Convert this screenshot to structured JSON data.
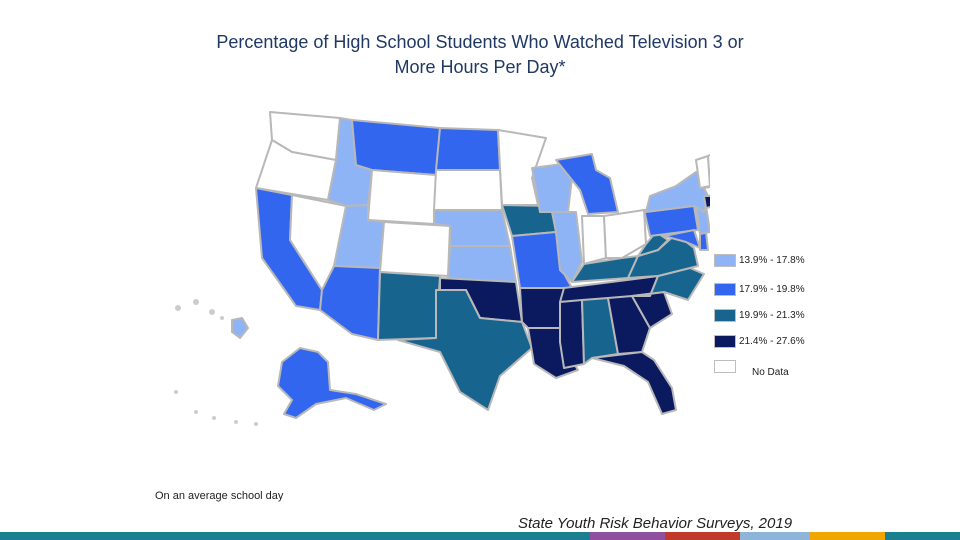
{
  "title_line1": "Percentage of High School Students Who Watched Television 3 or",
  "title_line2": "More Hours Per Day*",
  "footnote": "On an average school day",
  "source": "State Youth Risk Behavior Surveys, 2019",
  "legend": [
    {
      "label": "13.9% - 17.8%",
      "color": "#8fb4f5"
    },
    {
      "label": "17.9% - 19.8%",
      "color": "#3366ee"
    },
    {
      "label": "19.9% - 21.3%",
      "color": "#17648f"
    },
    {
      "label": "21.4% - 27.6%",
      "color": "#0b1a5e"
    },
    {
      "label": "No Data",
      "color": "#ffffff"
    }
  ],
  "state_colors": {
    "WA": "#ffffff",
    "OR": "#ffffff",
    "CA": "#3366ee",
    "NV": "#ffffff",
    "ID": "#8fb4f5",
    "MT": "#3366ee",
    "WY": "#ffffff",
    "UT": "#8fb4f5",
    "AZ": "#3366ee",
    "CO": "#ffffff",
    "NM": "#17648f",
    "ND": "#3366ee",
    "SD": "#ffffff",
    "NE": "#8fb4f5",
    "KS": "#8fb4f5",
    "OK": "#0b1a5e",
    "TX": "#17648f",
    "MN": "#ffffff",
    "IA": "#17648f",
    "MO": "#3366ee",
    "AR": "#0b1a5e",
    "LA": "#0b1a5e",
    "WI": "#8fb4f5",
    "IL": "#8fb4f5",
    "MI": "#3366ee",
    "IN": "#ffffff",
    "OH": "#ffffff",
    "KY": "#17648f",
    "TN": "#0b1a5e",
    "MS": "#0b1a5e",
    "AL": "#17648f",
    "GA": "#0b1a5e",
    "FL": "#0b1a5e",
    "SC": "#0b1a5e",
    "NC": "#17648f",
    "VA": "#17648f",
    "WV": "#17648f",
    "MD": "#3366ee",
    "DE": "#3366ee",
    "PA": "#3366ee",
    "NJ": "#8fb4f5",
    "NY": "#8fb4f5",
    "CT": "#0b1a5e",
    "RI": "#0b1a5e",
    "MA": "#ffffff",
    "VT": "#ffffff",
    "NH": "#ffffff",
    "ME": "#17648f",
    "AK": "#3366ee",
    "HI": "#8fb4f5"
  },
  "bottom_bar_colors": [
    "#1a7f8e",
    "#8d4f9e",
    "#c0392b",
    "#8fb4d9",
    "#f0a500",
    "#1a7f8e"
  ]
}
